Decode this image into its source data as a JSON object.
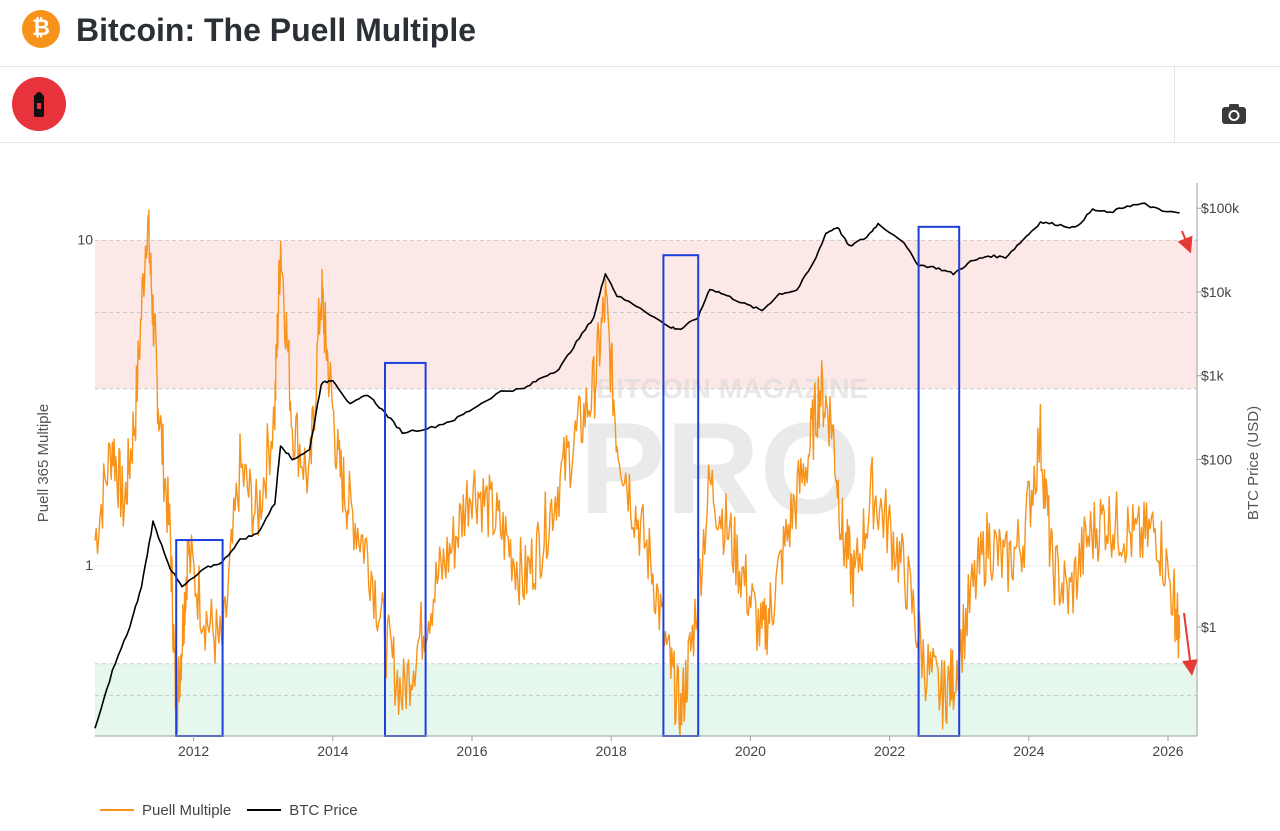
{
  "header": {
    "title": "Bitcoin: The Puell Multiple",
    "logo_icon": "bitcoin-logo-icon",
    "logo_glyph": "₿"
  },
  "toolbar": {
    "brand_icon": "bitcoin-magazine-pro-logo-icon",
    "camera_icon": "camera-icon"
  },
  "watermark": {
    "line1": "BITCOIN MAGAZINE",
    "line2": "PRO"
  },
  "colors": {
    "puell": "#f7931a",
    "btc": "#000000",
    "overvalued_band": "#fde8e8",
    "undervalued_band": "#e6f7ee",
    "highlight_box": "#1f3fdc",
    "arrow": "#e53935",
    "brand": "#e8333c"
  },
  "chart_data": {
    "type": "line",
    "title": "",
    "x_ticks": [
      "2012",
      "2014",
      "2016",
      "2018",
      "2020",
      "2022",
      "2024",
      "2026"
    ],
    "xlim": [
      "2010-08",
      "2026-06"
    ],
    "y_left": {
      "label": "Puell 365 Multiple",
      "scale": "log",
      "ticks": [
        "10",
        "1"
      ],
      "range": [
        0.3,
        15
      ]
    },
    "y_right": {
      "label": "BTC Price (USD)",
      "scale": "log",
      "ticks": [
        "$100k",
        "$10k",
        "$1k",
        "$100",
        "$1"
      ],
      "range": [
        0.05,
        200000
      ]
    },
    "bands": [
      {
        "name": "overvalued",
        "y_from": 3.5,
        "y_to": 10
      },
      {
        "name": "undervalued",
        "y_from": 0.3,
        "y_to": 0.5
      }
    ],
    "reference_lines": [
      10,
      6,
      3.5,
      0.5,
      0.4,
      0.3
    ],
    "series": [
      {
        "name": "Puell Multiple",
        "axis": "left",
        "x": [
          "2010-08",
          "2010-11",
          "2011-01",
          "2011-03",
          "2011-05",
          "2011-06",
          "2011-07",
          "2011-09",
          "2011-10",
          "2011-11",
          "2011-12",
          "2012-03",
          "2012-06",
          "2012-09",
          "2012-12",
          "2013-03",
          "2013-04",
          "2013-06",
          "2013-09",
          "2013-11",
          "2013-12",
          "2014-02",
          "2014-04",
          "2014-07",
          "2014-10",
          "2015-01",
          "2015-04",
          "2015-07",
          "2015-10",
          "2016-01",
          "2016-04",
          "2016-07",
          "2016-10",
          "2017-01",
          "2017-04",
          "2017-07",
          "2017-10",
          "2017-12",
          "2018-02",
          "2018-05",
          "2018-08",
          "2018-11",
          "2019-01",
          "2019-03",
          "2019-06",
          "2019-09",
          "2019-12",
          "2020-03",
          "2020-05",
          "2020-08",
          "2020-11",
          "2021-01",
          "2021-03",
          "2021-05",
          "2021-07",
          "2021-10",
          "2022-01",
          "2022-04",
          "2022-07",
          "2022-10",
          "2022-12",
          "2023-03",
          "2023-06",
          "2023-09",
          "2023-12",
          "2024-03",
          "2024-05",
          "2024-08",
          "2024-11",
          "2025-02",
          "2025-05",
          "2025-08",
          "2025-11",
          "2026-02",
          "2026-03"
        ],
        "values": [
          1.2,
          2.4,
          1.5,
          3.0,
          12.0,
          6.0,
          3.0,
          1.2,
          0.35,
          0.6,
          1.1,
          0.7,
          0.55,
          2.0,
          1.4,
          3.0,
          10.0,
          2.8,
          1.8,
          7.0,
          4.5,
          2.0,
          1.5,
          1.1,
          0.6,
          0.4,
          0.6,
          0.9,
          1.2,
          1.8,
          1.5,
          1.2,
          0.9,
          1.2,
          1.8,
          2.5,
          3.5,
          6.5,
          2.5,
          1.5,
          1.0,
          0.5,
          0.35,
          0.6,
          1.8,
          1.3,
          0.9,
          0.6,
          0.8,
          1.4,
          2.2,
          3.5,
          2.8,
          1.2,
          0.9,
          1.7,
          1.3,
          0.9,
          0.5,
          0.4,
          0.45,
          0.8,
          1.2,
          1.0,
          1.2,
          2.5,
          1.0,
          0.8,
          1.2,
          1.4,
          1.3,
          1.2,
          1.3,
          0.8,
          0.6
        ]
      },
      {
        "name": "BTC Price",
        "axis": "right",
        "x": [
          "2010-08",
          "2010-11",
          "2011-02",
          "2011-04",
          "2011-06",
          "2011-09",
          "2011-11",
          "2012-03",
          "2012-06",
          "2012-09",
          "2012-12",
          "2013-03",
          "2013-04",
          "2013-06",
          "2013-09",
          "2013-11",
          "2014-01",
          "2014-04",
          "2014-07",
          "2014-10",
          "2015-01",
          "2015-06",
          "2015-10",
          "2016-01",
          "2016-06",
          "2016-10",
          "2017-01",
          "2017-04",
          "2017-07",
          "2017-10",
          "2017-12",
          "2018-02",
          "2018-06",
          "2018-11",
          "2019-01",
          "2019-04",
          "2019-06",
          "2019-09",
          "2019-12",
          "2020-03",
          "2020-06",
          "2020-09",
          "2020-12",
          "2021-02",
          "2021-04",
          "2021-06",
          "2021-09",
          "2021-11",
          "2022-03",
          "2022-06",
          "2022-09",
          "2022-12",
          "2023-03",
          "2023-06",
          "2023-09",
          "2023-12",
          "2024-03",
          "2024-06",
          "2024-09",
          "2024-12",
          "2025-03",
          "2025-06",
          "2025-09",
          "2025-12",
          "2026-03"
        ],
        "values": [
          0.06,
          0.3,
          1,
          3,
          18,
          5,
          3,
          5,
          6,
          11,
          13,
          30,
          150,
          100,
          130,
          800,
          900,
          450,
          600,
          360,
          210,
          240,
          300,
          400,
          650,
          700,
          950,
          1200,
          2500,
          5000,
          17000,
          9000,
          6500,
          3800,
          3600,
          5000,
          11000,
          9000,
          7200,
          6000,
          9500,
          10500,
          23000,
          50000,
          60000,
          35000,
          45000,
          65000,
          42000,
          21000,
          19500,
          16500,
          23000,
          27000,
          26000,
          42000,
          68000,
          64000,
          58000,
          96000,
          88000,
          107000,
          112000,
          92000,
          88000
        ]
      }
    ],
    "highlight_boxes": [
      {
        "x_from": "2011-10",
        "x_to": "2012-06",
        "y_from": 0.3,
        "y_to": 1.2
      },
      {
        "x_from": "2014-10",
        "x_to": "2015-05",
        "y_from": 0.3,
        "y_to": 4.2
      },
      {
        "x_from": "2018-10",
        "x_to": "2019-04",
        "y_from": 0.3,
        "y_to": 9.0
      },
      {
        "x_from": "2022-06",
        "x_to": "2023-01",
        "y_from": 0.3,
        "y_to": 11.0
      }
    ]
  },
  "legend": [
    {
      "label": "Puell Multiple",
      "color": "#f7931a"
    },
    {
      "label": "BTC Price",
      "color": "#000000"
    }
  ]
}
